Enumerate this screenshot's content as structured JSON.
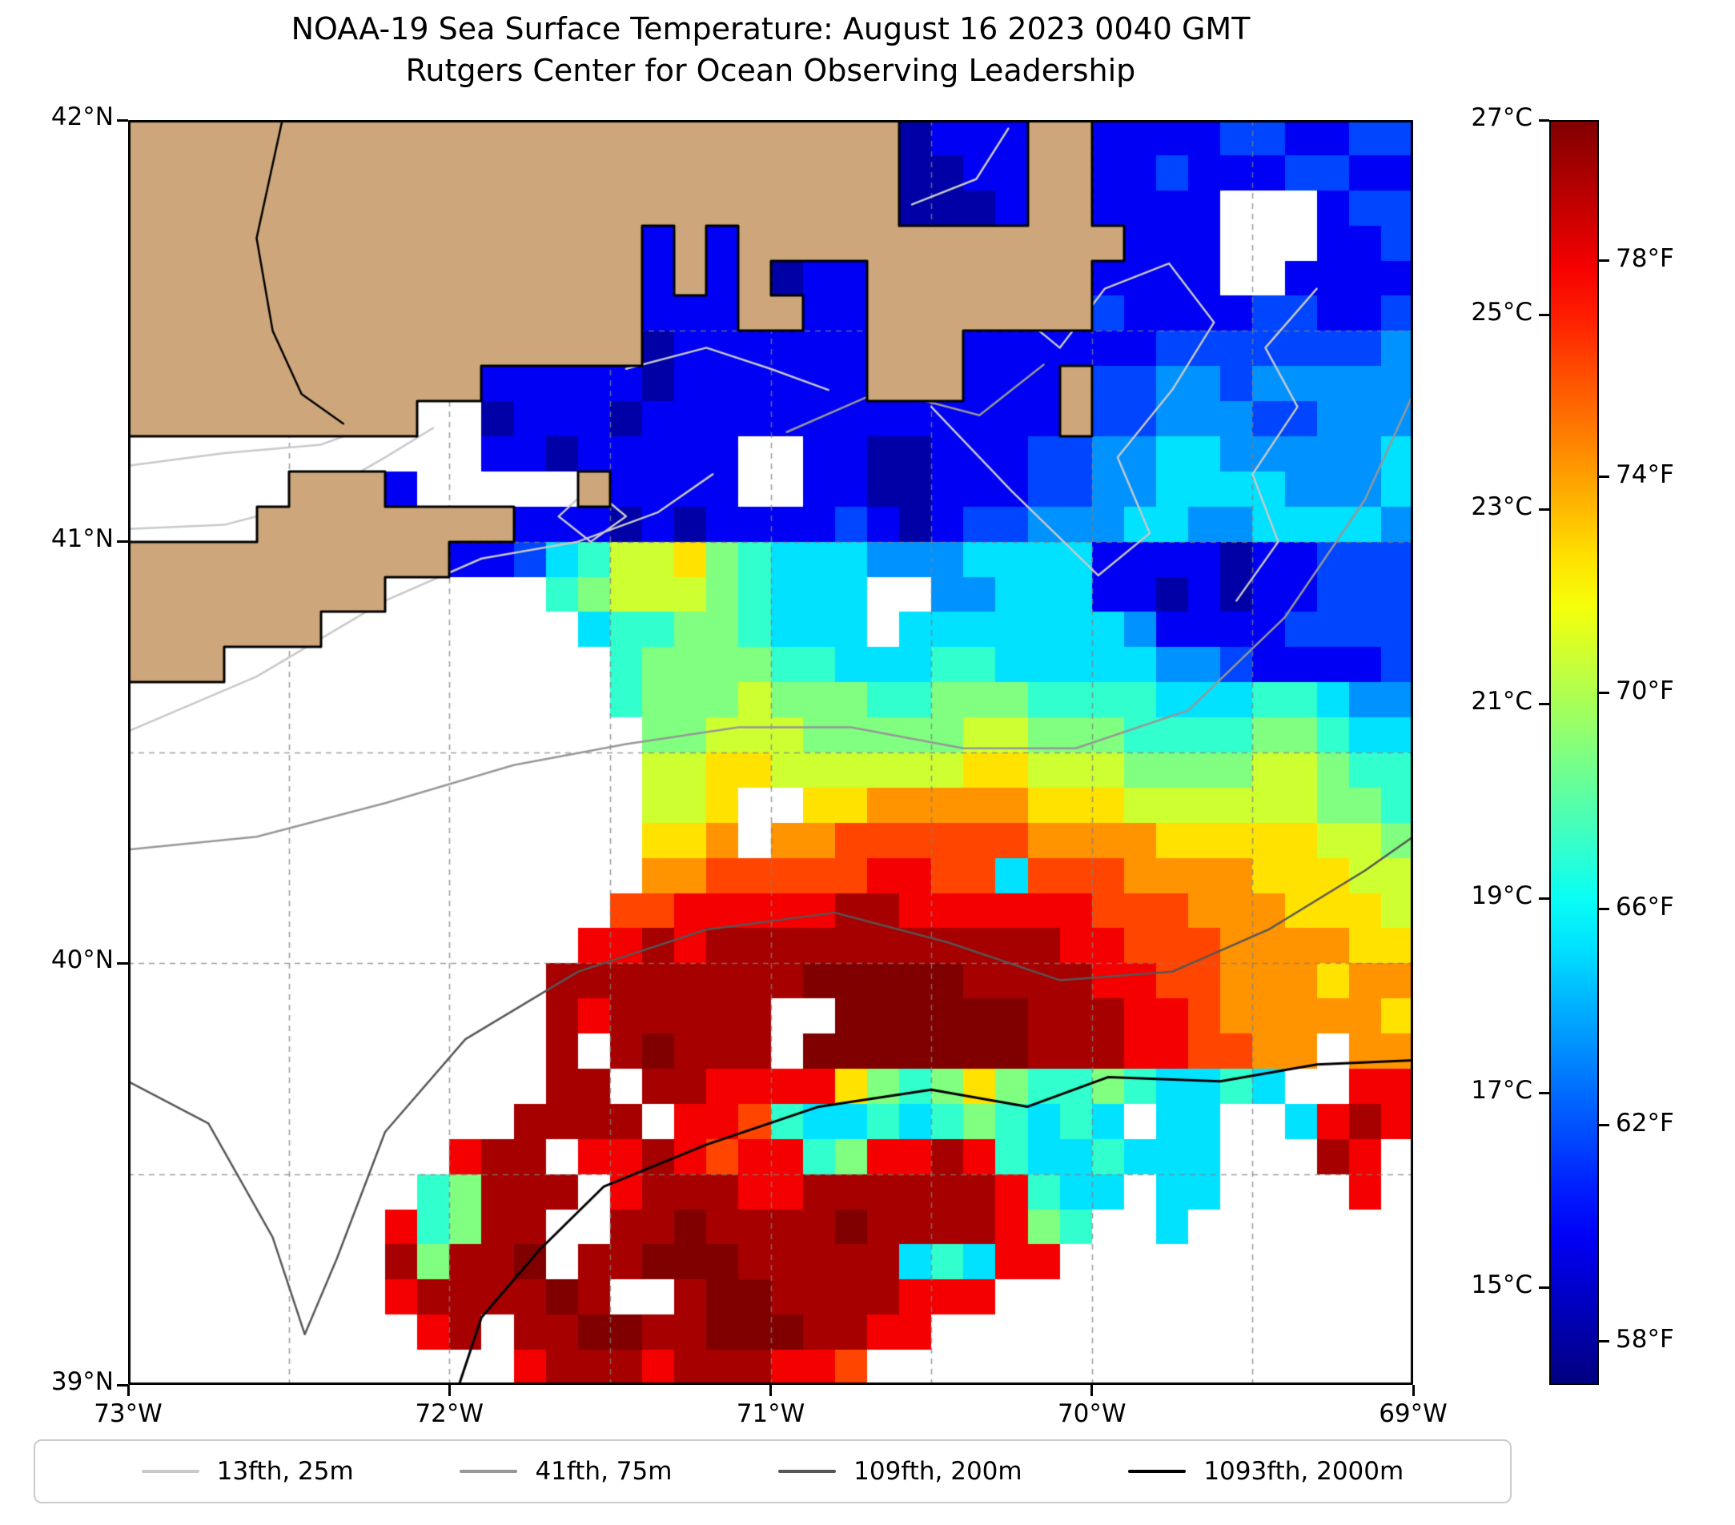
{
  "title": {
    "line1": "NOAA-19 Sea Surface Temperature: August 16 2023 0040 GMT",
    "line2": "Rutgers Center for Ocean Observing Leadership"
  },
  "axes": {
    "x_ticks": [
      {
        "label": "73°W",
        "lon_w": 73
      },
      {
        "label": "72°W",
        "lon_w": 72
      },
      {
        "label": "71°W",
        "lon_w": 71
      },
      {
        "label": "70°W",
        "lon_w": 70
      },
      {
        "label": "69°W",
        "lon_w": 69
      }
    ],
    "y_ticks": [
      {
        "label": "42°N",
        "lat": 42
      },
      {
        "label": "41°N",
        "lat": 41
      },
      {
        "label": "40°N",
        "lat": 40
      },
      {
        "label": "39°N",
        "lat": 39
      }
    ],
    "lon_range_deg_west": [
      73,
      69
    ],
    "lat_range_deg_north": [
      39,
      42
    ],
    "grid_interval_deg": 0.5,
    "grid_style": "dashed"
  },
  "colorbar": {
    "min_c": 14,
    "max_c": 27,
    "ticks_c": [
      {
        "label": "27°C",
        "value_c": 27
      },
      {
        "label": "25°C",
        "value_c": 25
      },
      {
        "label": "23°C",
        "value_c": 23
      },
      {
        "label": "21°C",
        "value_c": 21
      },
      {
        "label": "19°C",
        "value_c": 19
      },
      {
        "label": "17°C",
        "value_c": 17
      },
      {
        "label": "15°C",
        "value_c": 15
      }
    ],
    "ticks_f": [
      {
        "label": "78°F",
        "value_f": 78
      },
      {
        "label": "74°F",
        "value_f": 74
      },
      {
        "label": "70°F",
        "value_f": 70
      },
      {
        "label": "66°F",
        "value_f": 66
      },
      {
        "label": "62°F",
        "value_f": 62
      },
      {
        "label": "58°F",
        "value_f": 58
      }
    ]
  },
  "legend": {
    "items": [
      {
        "label": "13fth, 25m",
        "color": "#c9c9c9"
      },
      {
        "label": "41fth, 75m",
        "color": "#979797"
      },
      {
        "label": "109fth, 200m",
        "color": "#565656"
      },
      {
        "label": "1093fth, 2000m",
        "color": "#000000"
      }
    ]
  },
  "colors": {
    "land": "#cda77b",
    "coastline": "#000000",
    "no_data": "#ffffff",
    "grid_line": "rgba(128,128,128,0.75)",
    "frame": "#000000",
    "background": "#ffffff"
  },
  "chart_data": {
    "type": "heatmap",
    "title": "NOAA-19 Sea Surface Temperature: August 16 2023 0040 GMT",
    "subtitle": "Rutgers Center for Ocean Observing Leadership",
    "colormap": "jet",
    "units_primary": "°C",
    "units_secondary": "°F",
    "value_range_c": [
      14,
      27
    ],
    "x_axis": {
      "range_deg_west": [
        73,
        69
      ],
      "ticks": [
        "73°W",
        "72°W",
        "71°W",
        "70°W",
        "69°W"
      ]
    },
    "y_axis": {
      "range_deg_north": [
        39,
        42
      ],
      "ticks": [
        "39°N",
        "40°N",
        "41°N",
        "42°N"
      ]
    },
    "grid": {
      "cols": 40,
      "rows": 36,
      "cell_deg_lon": 0.1,
      "cell_deg_lat": 0.08333,
      "origin": "top-left = 73°W, 42°N"
    },
    "encoding": {
      "land_char": "L",
      "no_data_char": ".",
      "temp_chars": "abcdefghijklmn",
      "temp_values_c": [
        14.5,
        15.5,
        16.5,
        17.5,
        18.5,
        19.5,
        20.5,
        21.5,
        22.5,
        23.5,
        24.5,
        25.5,
        26.5,
        27
      ]
    },
    "sst_rows": [
      "LLLLLLLLLLLLLLLLLLLLLLLLabbbLLbbbbccbbcc",
      "LLLLLLLLLLLLLLLLLLLLLLLLaabbLLbbcbbbccbb",
      "LLLLLLLLLLLLLLLLLLLLLLLLaaabLLbbbb...bcc",
      "LLLLLLLLLLLLLLLLbLbLLLLLLLLLLLLbbb...bbc",
      "LLLLLLLLLLLLLLLLbLbLabbLLLLLLLbbbb..bbbb",
      "LLLLLLLLLLLLLLLLbbbLLbbLLLLLLLcbbbbccbbc",
      "LLLLLLLLLLLLLLLLabbbbbbLLLbbbbbbcccccccd",
      "LLLLLLLLLLLbbbbbabbbbbbLLLbbbLccddcddddd",
      "LLLLLLLLL..abbbabbbbbbbbbbbbbLccdddccddd",
      "...........bbabbbbb..bbaabbbccddeeddddde",
      ".....LLLb.....Lbbbb..bbaabbbccddeeeeddde",
      "....LLLLLLLLbbbababbbbcbabccdddeeddeeeed",
      "LLLLLLLLLLbbcefhhigfeeedddeeeebbbbabbccc",
      "LLLLLLLL.....fghhhgfeee..ddeeebbababbccc",
      "LLLLLL........effggfeee.eeeeeeedbbbbcccc",
      "LLL............fggggffeeeffeeeeeddcbbbbc",
      "...............fggghgggffgggffffeeeffedd",
      "................gghhhggggghhgggffffggfee",
      "................hhiihhhhhhiihhhgggghhgff",
      "................hhi..iijjjjjiiihhhhhhggf",
      "................iij.jjkkkkkkjjjjiiiiihhg",
      "................jjkkkkkllkkekkkjjjjiiihh",
      "...............kklllllmmllllllkkkjjjiiih",
      "..............llmlmmmmmmmmmmmllkkkjjjjii",
      ".............mmmmmmmmnnnnnmmmmllkkjjjijj",
      ".............mlmmmmm..nnnnnnmmmllkjjjjji",
      ".............m.mnmmm.nnnnnnnmmmllkkjj.jj",
      ".............mm.mmlllligfgigffgfeefe..ll",
      "............mmmm.llkfeefefgfefe.ee..elml",
      "..........lmm.llmlkllfgllmlfeefeee...ml.",
      ".........fgmmm.lmmmllmmmmmmlfee.ee....l.",
      "........lfgmm..mmnmmmmnmmmmlgf..e.......",
      "........mgmmn.mmnnnmmmmmefell...........",
      "........lmmmmnm..mnnmmmmlll.............",
      ".........lm.mmnnmmnnnmmll...............",
      "............lmmmlmmmllk................."
    ],
    "contours": [
      {
        "name": "25m",
        "legend_label": "13fth, 25m",
        "color": "#c9c9c9",
        "width": 2.5,
        "segments": [
          [
            [
              73,
              41.18
            ],
            [
              72.7,
              41.21
            ],
            [
              72.4,
              41.23
            ],
            [
              72.15,
              41.3
            ],
            [
              72.35,
              41.34
            ],
            [
              72.75,
              41.3
            ],
            [
              73,
              41.28
            ]
          ],
          [
            [
              73,
              41.03
            ],
            [
              72.7,
              41.04
            ],
            [
              72.45,
              41.09
            ],
            [
              72.2,
              41.2
            ],
            [
              72.05,
              41.27
            ]
          ],
          [
            [
              73,
              40.55
            ],
            [
              72.6,
              40.68
            ],
            [
              72.2,
              40.86
            ],
            [
              71.9,
              40.96
            ],
            [
              71.6,
              41.0
            ],
            [
              71.35,
              41.07
            ],
            [
              71.18,
              41.16
            ]
          ],
          [
            [
              71.66,
              41.06
            ],
            [
              71.56,
              41.0
            ],
            [
              71.45,
              41.06
            ],
            [
              71.56,
              41.13
            ],
            [
              71.66,
              41.06
            ]
          ],
          [
            [
              70.5,
              41.32
            ],
            [
              70.25,
              41.12
            ],
            [
              69.98,
              40.92
            ],
            [
              69.82,
              41.02
            ],
            [
              69.92,
              41.2
            ],
            [
              69.75,
              41.36
            ],
            [
              69.62,
              41.52
            ],
            [
              69.76,
              41.66
            ],
            [
              69.96,
              41.6
            ],
            [
              70.1,
              41.46
            ],
            [
              70.26,
              41.56
            ],
            [
              70.12,
              41.72
            ]
          ],
          [
            [
              69.55,
              40.86
            ],
            [
              69.42,
              41.0
            ],
            [
              69.5,
              41.16
            ],
            [
              69.36,
              41.32
            ],
            [
              69.46,
              41.46
            ],
            [
              69.3,
              41.6
            ]
          ],
          [
            [
              70.56,
              41.8
            ],
            [
              70.36,
              41.86
            ],
            [
              70.26,
              41.98
            ]
          ],
          [
            [
              71.45,
              41.41
            ],
            [
              71.2,
              41.46
            ],
            [
              71.0,
              41.41
            ],
            [
              70.82,
              41.36
            ]
          ]
        ]
      },
      {
        "name": "75m",
        "legend_label": "41fth, 75m",
        "color": "#979797",
        "width": 2.5,
        "segments": [
          [
            [
              73,
              40.27
            ],
            [
              72.6,
              40.3
            ],
            [
              72.2,
              40.38
            ],
            [
              71.8,
              40.47
            ],
            [
              71.45,
              40.52
            ],
            [
              71.1,
              40.56
            ],
            [
              70.75,
              40.56
            ],
            [
              70.4,
              40.51
            ],
            [
              70.05,
              40.51
            ],
            [
              69.7,
              40.6
            ],
            [
              69.4,
              40.82
            ],
            [
              69.15,
              41.1
            ],
            [
              69.0,
              41.35
            ]
          ],
          [
            [
              70.95,
              41.26
            ],
            [
              70.65,
              41.36
            ],
            [
              70.35,
              41.3
            ],
            [
              70.15,
              41.42
            ]
          ]
        ]
      },
      {
        "name": "200m",
        "legend_label": "109fth, 200m",
        "color": "#565656",
        "width": 2.5,
        "segments": [
          [
            [
              73,
              39.72
            ],
            [
              72.75,
              39.62
            ],
            [
              72.55,
              39.35
            ],
            [
              72.45,
              39.12
            ],
            [
              72.35,
              39.3
            ],
            [
              72.2,
              39.6
            ],
            [
              71.95,
              39.82
            ],
            [
              71.6,
              39.98
            ],
            [
              71.2,
              40.08
            ],
            [
              70.8,
              40.12
            ],
            [
              70.45,
              40.05
            ],
            [
              70.1,
              39.96
            ],
            [
              69.75,
              39.98
            ],
            [
              69.45,
              40.08
            ],
            [
              69.15,
              40.22
            ],
            [
              69.0,
              40.3
            ]
          ]
        ]
      },
      {
        "name": "2000m",
        "legend_label": "1093fth, 2000m",
        "color": "#000000",
        "width": 3,
        "segments": [
          [
            [
              71.97,
              39.0
            ],
            [
              71.9,
              39.16
            ],
            [
              71.72,
              39.32
            ],
            [
              71.52,
              39.47
            ],
            [
              71.2,
              39.57
            ],
            [
              70.85,
              39.66
            ],
            [
              70.5,
              39.7
            ],
            [
              70.2,
              39.66
            ],
            [
              69.95,
              39.73
            ],
            [
              69.6,
              39.72
            ],
            [
              69.3,
              39.76
            ],
            [
              69.0,
              39.77
            ]
          ]
        ]
      }
    ],
    "rivers": [
      [
        [
          72.52,
          42.0
        ],
        [
          72.6,
          41.72
        ],
        [
          72.55,
          41.5
        ],
        [
          72.46,
          41.35
        ],
        [
          72.33,
          41.28
        ]
      ]
    ]
  }
}
